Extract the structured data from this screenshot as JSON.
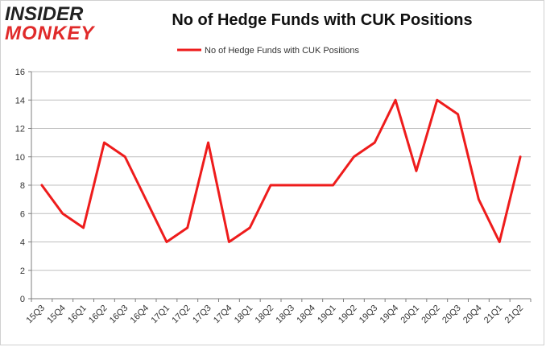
{
  "header": {
    "logo_line1": "INSIDER",
    "logo_line2": "MONKEY",
    "title": "No of Hedge Funds with CUK Positions"
  },
  "colors": {
    "series": "#ee1c1c",
    "grid": "#bfbfbf",
    "axis": "#7f7f7f"
  },
  "chart_data": {
    "type": "line",
    "title": "No of Hedge Funds with CUK Positions",
    "xlabel": "",
    "ylabel": "",
    "ylim": [
      0,
      16
    ],
    "yticks": [
      0,
      2,
      4,
      6,
      8,
      10,
      12,
      14,
      16
    ],
    "grid": true,
    "legend_position": "top-center",
    "categories": [
      "15Q3",
      "15Q4",
      "16Q1",
      "16Q2",
      "16Q3",
      "16Q4",
      "17Q1",
      "17Q2",
      "17Q3",
      "17Q4",
      "18Q1",
      "18Q2",
      "18Q3",
      "18Q4",
      "19Q1",
      "19Q2",
      "19Q3",
      "19Q4",
      "20Q1",
      "20Q2",
      "20Q3",
      "20Q4",
      "21Q1",
      "21Q2"
    ],
    "series": [
      {
        "name": "No of Hedge Funds with CUK Positions",
        "values": [
          8,
          6,
          5,
          11,
          10,
          7,
          4,
          5,
          11,
          4,
          5,
          8,
          8,
          8,
          8,
          10,
          11,
          14,
          9,
          14,
          13,
          7,
          4,
          10
        ]
      }
    ]
  }
}
